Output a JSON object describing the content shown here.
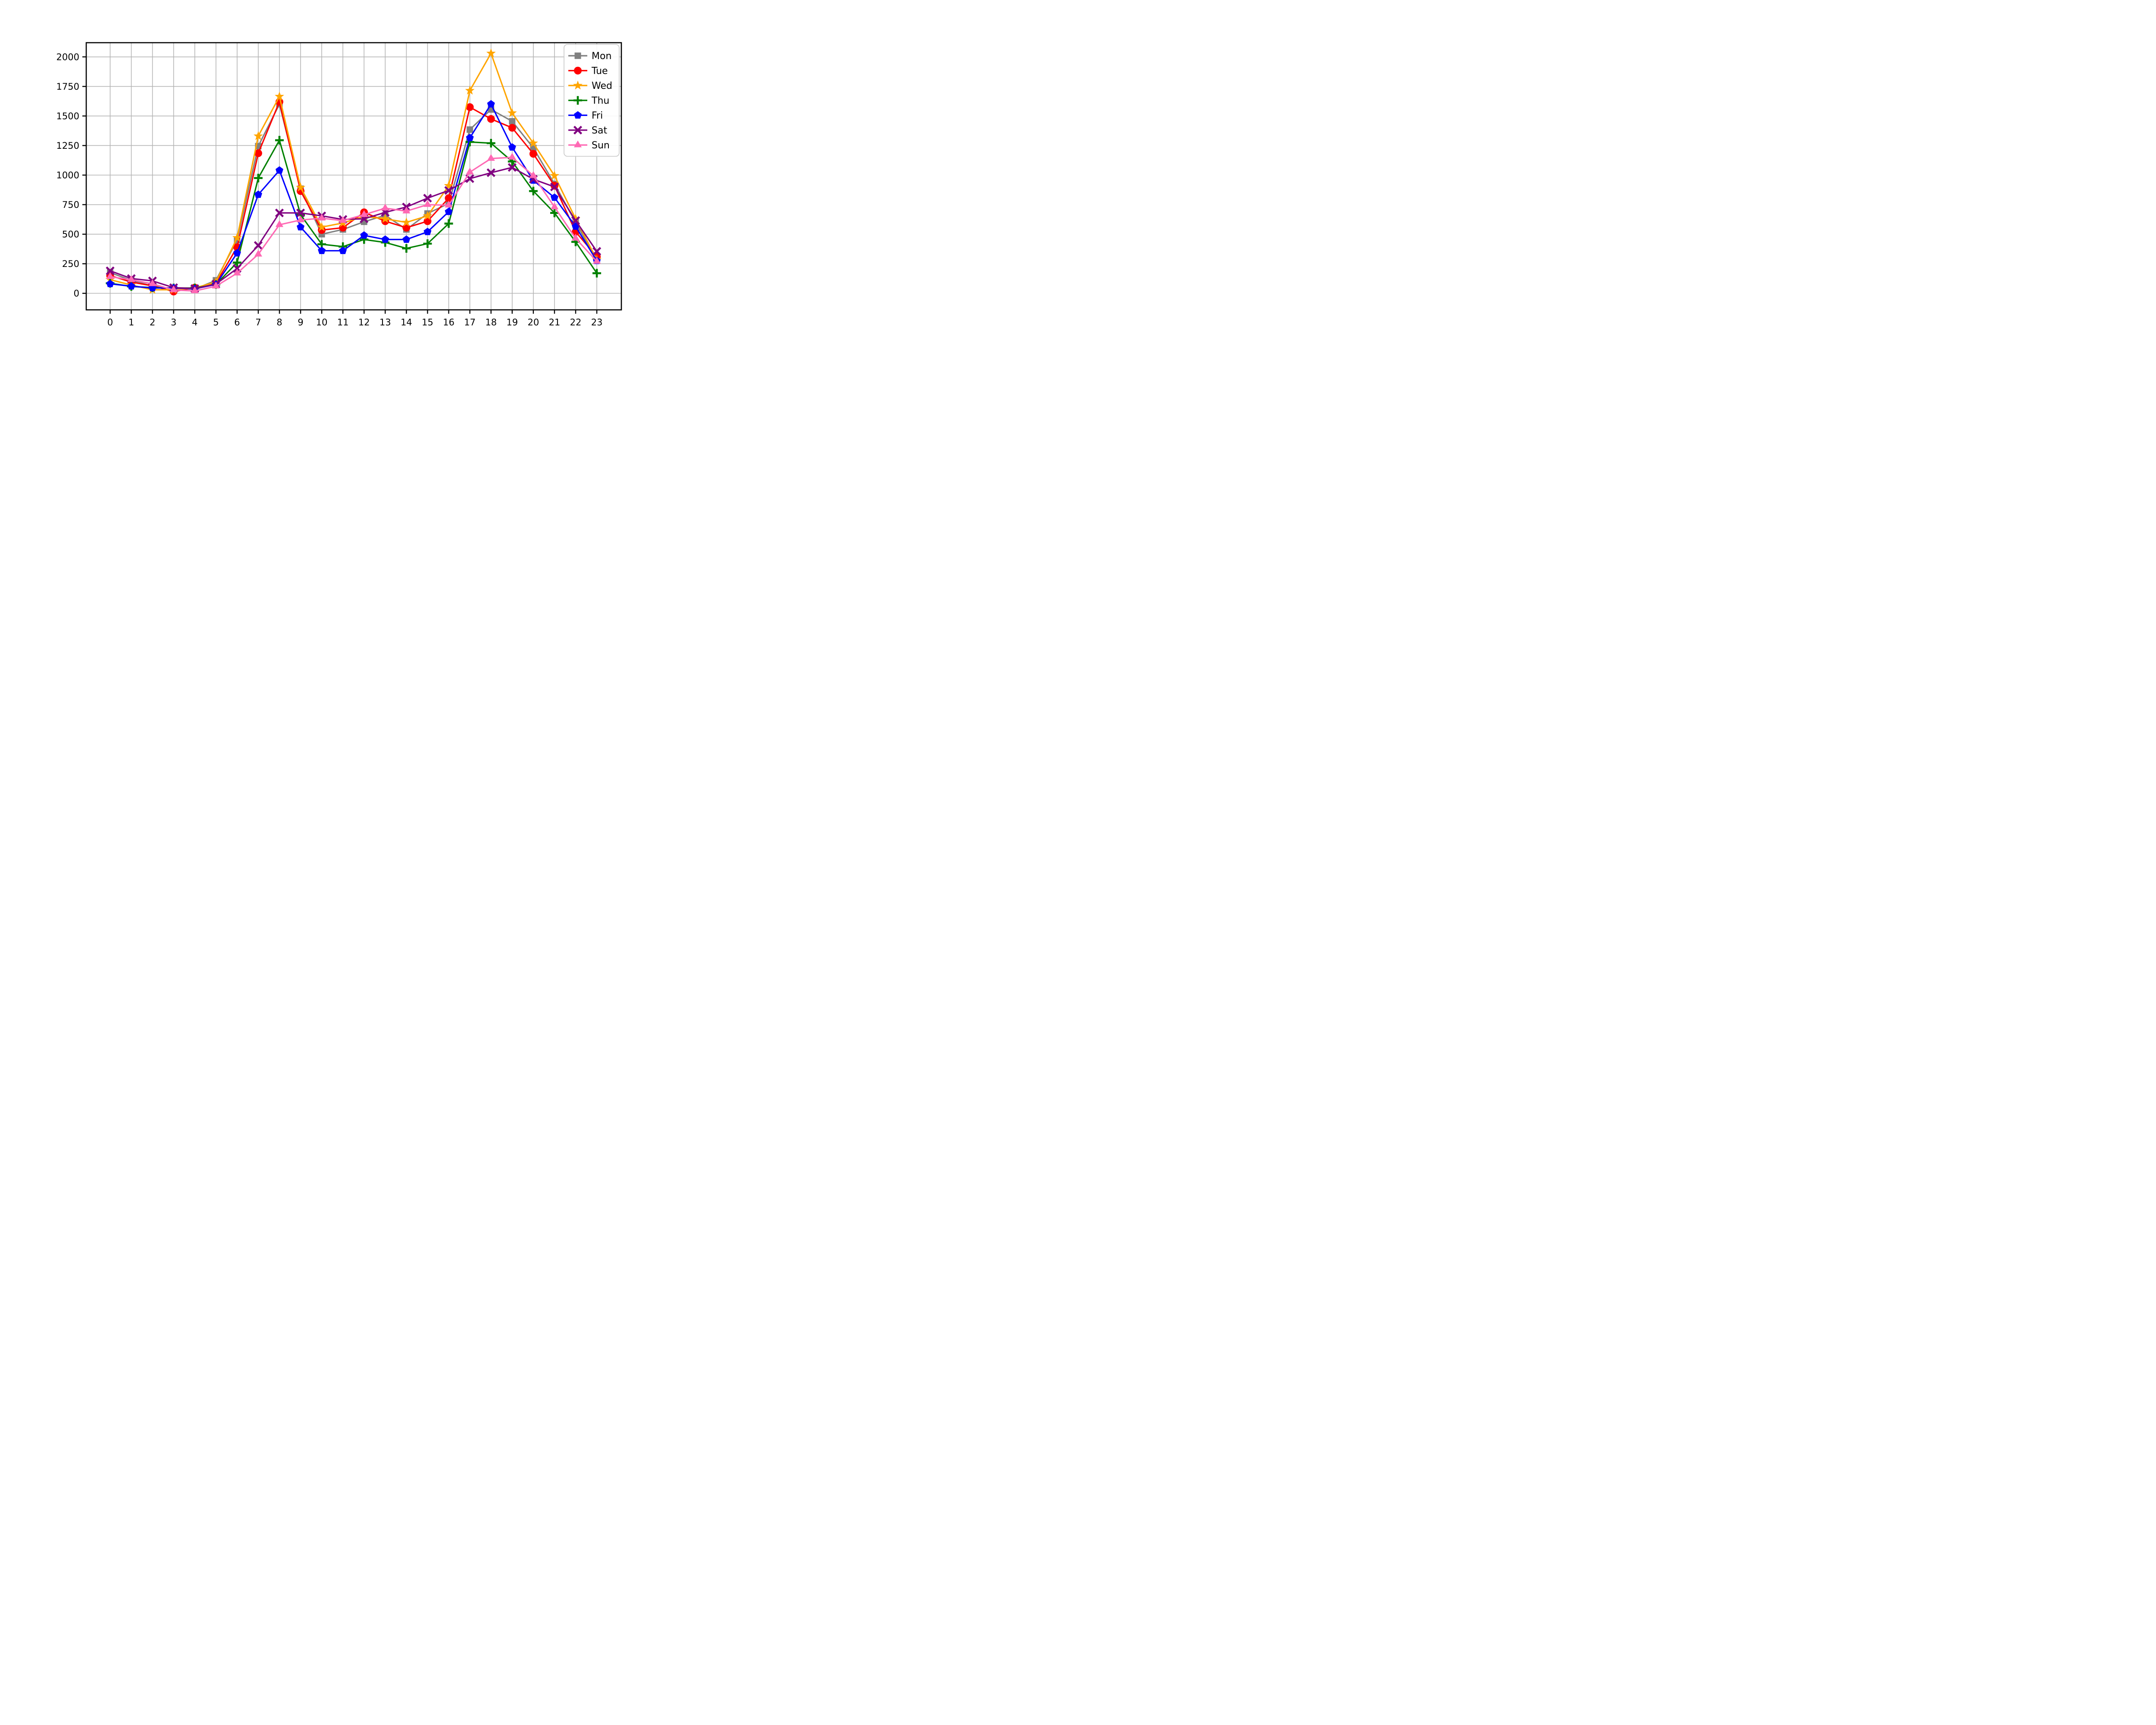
{
  "chart_data": {
    "type": "line",
    "title": "",
    "xlabel": "",
    "ylabel": "",
    "x": [
      0,
      1,
      2,
      3,
      4,
      5,
      6,
      7,
      8,
      9,
      10,
      11,
      12,
      13,
      14,
      15,
      16,
      17,
      18,
      19,
      20,
      21,
      22,
      23
    ],
    "x_tick_labels": [
      "0",
      "1",
      "2",
      "3",
      "4",
      "5",
      "6",
      "7",
      "8",
      "9",
      "10",
      "11",
      "12",
      "13",
      "14",
      "15",
      "16",
      "17",
      "18",
      "19",
      "20",
      "21",
      "22",
      "23"
    ],
    "y_ticks": [
      0,
      250,
      500,
      750,
      1000,
      1250,
      1500,
      1750,
      2000
    ],
    "y_tick_labels": [
      "0",
      "250",
      "500",
      "750",
      "1000",
      "1250",
      "1500",
      "1750",
      "2000"
    ],
    "xlim": [
      -1.13,
      24.16
    ],
    "ylim": [
      -140,
      2120
    ],
    "grid": true,
    "grid_color": "#b4b4b4",
    "background": "#ffffff",
    "legend_position": "upper right",
    "series": [
      {
        "name": "Mon",
        "color": "#808080",
        "marker": "square",
        "values": [
          175,
          110,
          62,
          38,
          35,
          110,
          450,
          1245,
          1600,
          885,
          500,
          540,
          605,
          660,
          540,
          675,
          760,
          1385,
          1555,
          1455,
          1230,
          925,
          600,
          280
        ]
      },
      {
        "name": "Tue",
        "color": "#ff0000",
        "marker": "circle",
        "values": [
          150,
          95,
          63,
          15,
          48,
          85,
          390,
          1185,
          1620,
          865,
          535,
          555,
          685,
          610,
          555,
          610,
          805,
          1575,
          1475,
          1400,
          1180,
          910,
          520,
          310
        ]
      },
      {
        "name": "Wed",
        "color": "#ffa500",
        "marker": "star",
        "values": [
          115,
          70,
          30,
          30,
          45,
          95,
          470,
          1330,
          1665,
          895,
          560,
          595,
          650,
          630,
          600,
          655,
          910,
          1715,
          2030,
          1525,
          1270,
          995,
          630,
          285
        ]
      },
      {
        "name": "Thu",
        "color": "#008000",
        "marker": "plus",
        "values": [
          85,
          58,
          48,
          45,
          45,
          75,
          260,
          975,
          1295,
          665,
          415,
          395,
          455,
          430,
          380,
          420,
          590,
          1280,
          1270,
          1115,
          865,
          680,
          435,
          170
        ]
      },
      {
        "name": "Fri",
        "color": "#0000ff",
        "marker": "pentagon",
        "values": [
          80,
          60,
          45,
          45,
          38,
          75,
          340,
          835,
          1040,
          560,
          360,
          360,
          490,
          455,
          455,
          520,
          690,
          1315,
          1600,
          1235,
          955,
          810,
          565,
          275
        ]
      },
      {
        "name": "Sat",
        "color": "#800080",
        "marker": "x",
        "values": [
          190,
          125,
          105,
          48,
          40,
          78,
          210,
          405,
          680,
          680,
          655,
          625,
          630,
          685,
          730,
          805,
          870,
          970,
          1020,
          1065,
          965,
          900,
          615,
          355
        ]
      },
      {
        "name": "Sun",
        "color": "#ff69b4",
        "marker": "triangle",
        "values": [
          140,
          115,
          80,
          28,
          20,
          60,
          170,
          330,
          580,
          620,
          635,
          615,
          665,
          720,
          695,
          750,
          745,
          1025,
          1140,
          1150,
          995,
          730,
          465,
          270
        ]
      }
    ]
  }
}
